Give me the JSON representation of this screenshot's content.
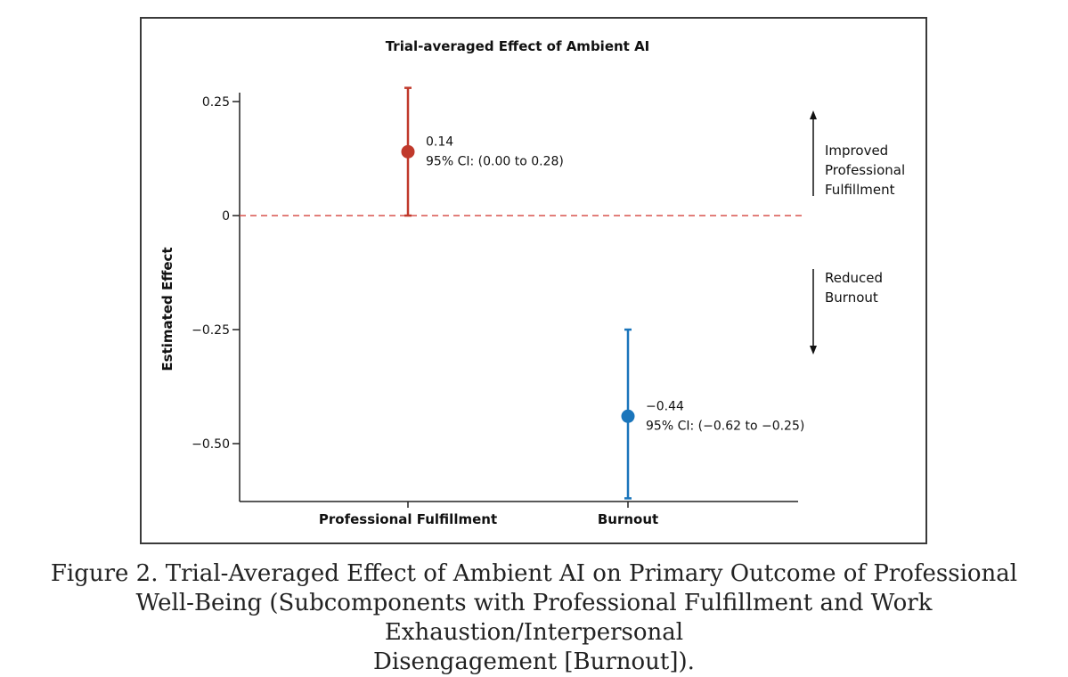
{
  "chart_data": {
    "type": "scatter",
    "title": "Trial-averaged Effect of Ambient AI",
    "ylabel": "Estimated Effect",
    "xlabel": "",
    "categories": [
      "Professional Fulfillment",
      "Burnout"
    ],
    "ylim": [
      -0.63,
      0.27
    ],
    "yticks": [
      {
        "value": 0.25,
        "label": "0.25"
      },
      {
        "value": 0,
        "label": "0"
      },
      {
        "value": -0.25,
        "label": "−0.25"
      },
      {
        "value": -0.5,
        "label": "−0.50"
      }
    ],
    "reference_line": {
      "value": 0,
      "style": "dashed",
      "color": "#d9534f"
    },
    "series": [
      {
        "name": "Professional Fulfillment",
        "estimate": 0.14,
        "ci_low": 0.0,
        "ci_high": 0.28,
        "color": "#c0392b",
        "label_value": "0.14",
        "label_ci": "95% CI: (0.00 to 0.28)"
      },
      {
        "name": "Burnout",
        "estimate": -0.44,
        "ci_low": -0.62,
        "ci_high": -0.25,
        "color": "#1a75bb",
        "label_value": "−0.44",
        "label_ci": "95% CI: (−0.62 to −0.25)"
      }
    ],
    "annotations": [
      {
        "lines": [
          "Improved",
          "Professional",
          "Fulfillment"
        ],
        "direction": "up"
      },
      {
        "lines": [
          "Reduced",
          "Burnout"
        ],
        "direction": "down"
      }
    ]
  },
  "caption": {
    "line1": "Figure 2.  Trial-Averaged Effect of Ambient AI on Primary Outcome of Professional",
    "line2": "Well-Being (Subcomponents with Professional Fulfillment and Work Exhaustion/Interpersonal",
    "line3": "Disengagement [Burnout])."
  }
}
